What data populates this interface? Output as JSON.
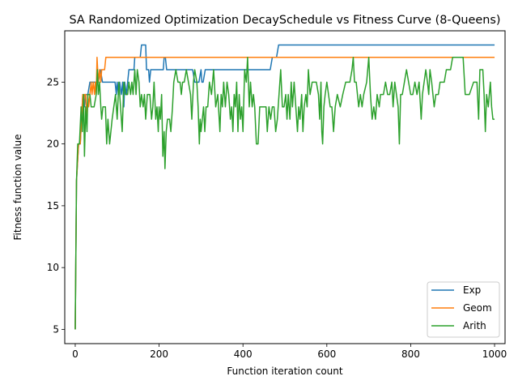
{
  "chart_data": {
    "type": "line",
    "title": "SA Randomized Optimization DecaySchedule vs Fitness Curve (8-Queens)",
    "xlabel": "Function iteration count",
    "ylabel": "Fitness function value",
    "xlim": [
      -25,
      1025
    ],
    "ylim": [
      3.85,
      29.15
    ],
    "xticks": [
      0,
      200,
      400,
      600,
      800,
      1000
    ],
    "yticks": [
      5,
      10,
      15,
      20,
      25
    ],
    "grid": false,
    "legend_position": "lower right",
    "series": [
      {
        "name": "Exp",
        "color": "#1f77b4",
        "points": [
          [
            0,
            5
          ],
          [
            3,
            17
          ],
          [
            8,
            20
          ],
          [
            12,
            20
          ],
          [
            15,
            22
          ],
          [
            18,
            24
          ],
          [
            22,
            23
          ],
          [
            25,
            24
          ],
          [
            30,
            24
          ],
          [
            35,
            25
          ],
          [
            45,
            25
          ],
          [
            55,
            25
          ],
          [
            60,
            26
          ],
          [
            65,
            25
          ],
          [
            80,
            25
          ],
          [
            95,
            25
          ],
          [
            98,
            24
          ],
          [
            100,
            25
          ],
          [
            103,
            24
          ],
          [
            106,
            25
          ],
          [
            110,
            24
          ],
          [
            113,
            25
          ],
          [
            116,
            23
          ],
          [
            118,
            25
          ],
          [
            122,
            24
          ],
          [
            125,
            25
          ],
          [
            128,
            26
          ],
          [
            140,
            26
          ],
          [
            142,
            27
          ],
          [
            155,
            27
          ],
          [
            158,
            28
          ],
          [
            168,
            28
          ],
          [
            170,
            26
          ],
          [
            175,
            26
          ],
          [
            177,
            25
          ],
          [
            180,
            26
          ],
          [
            185,
            26
          ],
          [
            200,
            26
          ],
          [
            210,
            26
          ],
          [
            212,
            27
          ],
          [
            215,
            27
          ],
          [
            218,
            26
          ],
          [
            230,
            26
          ],
          [
            280,
            26
          ],
          [
            285,
            25
          ],
          [
            295,
            25
          ],
          [
            300,
            26
          ],
          [
            302,
            25
          ],
          [
            305,
            25
          ],
          [
            310,
            26
          ],
          [
            390,
            26
          ],
          [
            400,
            26
          ],
          [
            465,
            26
          ],
          [
            470,
            27
          ],
          [
            480,
            27
          ],
          [
            485,
            28
          ],
          [
            1000,
            28
          ]
        ]
      },
      {
        "name": "Geom",
        "color": "#ff7f0e",
        "points": [
          [
            0,
            5
          ],
          [
            3,
            17
          ],
          [
            8,
            20
          ],
          [
            12,
            20
          ],
          [
            15,
            22
          ],
          [
            18,
            24
          ],
          [
            20,
            23
          ],
          [
            22,
            24
          ],
          [
            25,
            24
          ],
          [
            28,
            22
          ],
          [
            30,
            24
          ],
          [
            32,
            23
          ],
          [
            35,
            24
          ],
          [
            38,
            25
          ],
          [
            40,
            24
          ],
          [
            43,
            25
          ],
          [
            46,
            24
          ],
          [
            48,
            25
          ],
          [
            50,
            24
          ],
          [
            52,
            27
          ],
          [
            55,
            25
          ],
          [
            58,
            26
          ],
          [
            61,
            25
          ],
          [
            63,
            26
          ],
          [
            70,
            26
          ],
          [
            73,
            27
          ],
          [
            1000,
            27
          ]
        ]
      },
      {
        "name": "Arith",
        "color": "#2ca02c",
        "points": [
          [
            0,
            5
          ],
          [
            3,
            17
          ],
          [
            6,
            20
          ],
          [
            10,
            20
          ],
          [
            14,
            23
          ],
          [
            17,
            21
          ],
          [
            20,
            24
          ],
          [
            22,
            19
          ],
          [
            25,
            23
          ],
          [
            28,
            21
          ],
          [
            30,
            24
          ],
          [
            35,
            24
          ],
          [
            38,
            23
          ],
          [
            45,
            23
          ],
          [
            50,
            24
          ],
          [
            53,
            26
          ],
          [
            55,
            24
          ],
          [
            58,
            25
          ],
          [
            61,
            23
          ],
          [
            63,
            22
          ],
          [
            66,
            23
          ],
          [
            72,
            23
          ],
          [
            75,
            20
          ],
          [
            78,
            22
          ],
          [
            82,
            20
          ],
          [
            88,
            22
          ],
          [
            92,
            23
          ],
          [
            96,
            24
          ],
          [
            100,
            22
          ],
          [
            104,
            25
          ],
          [
            108,
            23
          ],
          [
            112,
            21
          ],
          [
            116,
            25
          ],
          [
            120,
            24
          ],
          [
            125,
            24
          ],
          [
            128,
            25
          ],
          [
            132,
            24
          ],
          [
            135,
            25
          ],
          [
            138,
            24
          ],
          [
            142,
            26
          ],
          [
            145,
            24
          ],
          [
            148,
            26
          ],
          [
            152,
            25
          ],
          [
            155,
            23
          ],
          [
            158,
            24
          ],
          [
            162,
            23
          ],
          [
            165,
            24
          ],
          [
            168,
            22
          ],
          [
            172,
            24
          ],
          [
            178,
            24
          ],
          [
            182,
            22
          ],
          [
            185,
            23
          ],
          [
            188,
            25
          ],
          [
            192,
            22
          ],
          [
            195,
            23
          ],
          [
            198,
            21
          ],
          [
            200,
            23
          ],
          [
            203,
            22
          ],
          [
            206,
            24
          ],
          [
            209,
            19
          ],
          [
            212,
            21
          ],
          [
            214,
            18
          ],
          [
            217,
            21
          ],
          [
            220,
            22
          ],
          [
            225,
            22
          ],
          [
            228,
            21
          ],
          [
            232,
            23
          ],
          [
            235,
            25
          ],
          [
            240,
            26
          ],
          [
            245,
            25
          ],
          [
            250,
            25
          ],
          [
            253,
            24
          ],
          [
            256,
            25
          ],
          [
            260,
            25
          ],
          [
            265,
            26
          ],
          [
            270,
            25
          ],
          [
            275,
            24
          ],
          [
            278,
            22
          ],
          [
            282,
            25
          ],
          [
            285,
            26
          ],
          [
            290,
            25
          ],
          [
            293,
            23
          ],
          [
            296,
            20
          ],
          [
            298,
            22
          ],
          [
            300,
            21
          ],
          [
            303,
            22
          ],
          [
            306,
            23
          ],
          [
            309,
            21
          ],
          [
            312,
            23
          ],
          [
            316,
            23
          ],
          [
            320,
            25
          ],
          [
            325,
            24
          ],
          [
            330,
            26
          ],
          [
            335,
            23
          ],
          [
            340,
            24
          ],
          [
            345,
            21
          ],
          [
            348,
            24
          ],
          [
            351,
            23
          ],
          [
            354,
            25
          ],
          [
            358,
            23
          ],
          [
            362,
            25
          ],
          [
            366,
            24
          ],
          [
            370,
            22
          ],
          [
            373,
            23
          ],
          [
            376,
            21
          ],
          [
            379,
            24
          ],
          [
            382,
            23
          ],
          [
            385,
            25
          ],
          [
            388,
            21
          ],
          [
            391,
            24
          ],
          [
            394,
            22
          ],
          [
            397,
            23
          ],
          [
            400,
            21
          ],
          [
            404,
            26
          ],
          [
            408,
            25
          ],
          [
            411,
            27
          ],
          [
            415,
            23
          ],
          [
            418,
            25
          ],
          [
            422,
            23
          ],
          [
            425,
            24
          ],
          [
            428,
            23
          ],
          [
            432,
            20
          ],
          [
            436,
            20
          ],
          [
            440,
            23
          ],
          [
            450,
            23
          ],
          [
            455,
            23
          ],
          [
            458,
            21
          ],
          [
            462,
            23
          ],
          [
            466,
            22
          ],
          [
            470,
            23
          ],
          [
            474,
            23
          ],
          [
            478,
            21
          ],
          [
            482,
            22
          ],
          [
            486,
            24
          ],
          [
            490,
            26
          ],
          [
            494,
            23
          ],
          [
            498,
            23
          ],
          [
            502,
            24
          ],
          [
            505,
            22
          ],
          [
            508,
            24
          ],
          [
            512,
            22
          ],
          [
            515,
            25
          ],
          [
            518,
            23
          ],
          [
            522,
            25
          ],
          [
            526,
            23
          ],
          [
            530,
            21
          ],
          [
            533,
            23
          ],
          [
            536,
            22
          ],
          [
            540,
            24
          ],
          [
            543,
            21
          ],
          [
            546,
            23
          ],
          [
            550,
            24
          ],
          [
            553,
            23
          ],
          [
            556,
            26
          ],
          [
            560,
            24
          ],
          [
            565,
            25
          ],
          [
            575,
            25
          ],
          [
            580,
            24
          ],
          [
            583,
            22
          ],
          [
            586,
            25
          ],
          [
            588,
            21
          ],
          [
            590,
            20
          ],
          [
            593,
            23
          ],
          [
            596,
            24
          ],
          [
            600,
            25
          ],
          [
            604,
            24
          ],
          [
            608,
            23
          ],
          [
            612,
            23
          ],
          [
            616,
            21
          ],
          [
            620,
            23
          ],
          [
            625,
            24
          ],
          [
            632,
            23
          ],
          [
            638,
            24
          ],
          [
            645,
            25
          ],
          [
            655,
            25
          ],
          [
            660,
            26
          ],
          [
            663,
            27
          ],
          [
            666,
            25
          ],
          [
            670,
            25
          ],
          [
            673,
            24
          ],
          [
            676,
            23
          ],
          [
            680,
            24
          ],
          [
            684,
            23
          ],
          [
            688,
            24
          ],
          [
            695,
            25
          ],
          [
            700,
            27
          ],
          [
            704,
            24
          ],
          [
            708,
            22
          ],
          [
            712,
            23
          ],
          [
            716,
            22
          ],
          [
            720,
            24
          ],
          [
            725,
            23
          ],
          [
            728,
            24
          ],
          [
            735,
            24
          ],
          [
            740,
            25
          ],
          [
            745,
            24
          ],
          [
            750,
            24
          ],
          [
            755,
            25
          ],
          [
            758,
            23
          ],
          [
            762,
            25
          ],
          [
            766,
            24
          ],
          [
            770,
            23
          ],
          [
            773,
            20
          ],
          [
            776,
            24
          ],
          [
            780,
            24
          ],
          [
            785,
            25
          ],
          [
            790,
            26
          ],
          [
            795,
            25
          ],
          [
            800,
            24
          ],
          [
            805,
            24
          ],
          [
            810,
            25
          ],
          [
            815,
            24
          ],
          [
            820,
            25
          ],
          [
            825,
            22
          ],
          [
            828,
            24
          ],
          [
            832,
            25
          ],
          [
            836,
            26
          ],
          [
            840,
            25
          ],
          [
            843,
            24
          ],
          [
            846,
            26
          ],
          [
            850,
            25
          ],
          [
            853,
            24
          ],
          [
            856,
            23
          ],
          [
            860,
            24
          ],
          [
            866,
            24
          ],
          [
            870,
            25
          ],
          [
            880,
            25
          ],
          [
            885,
            26
          ],
          [
            895,
            26
          ],
          [
            900,
            27
          ],
          [
            925,
            27
          ],
          [
            930,
            24
          ],
          [
            940,
            24
          ],
          [
            950,
            25
          ],
          [
            958,
            25
          ],
          [
            962,
            22
          ],
          [
            965,
            26
          ],
          [
            972,
            26
          ],
          [
            975,
            24
          ],
          [
            978,
            21
          ],
          [
            981,
            24
          ],
          [
            985,
            23
          ],
          [
            990,
            25
          ],
          [
            993,
            23
          ],
          [
            996,
            22
          ],
          [
            1000,
            22
          ]
        ]
      }
    ]
  }
}
